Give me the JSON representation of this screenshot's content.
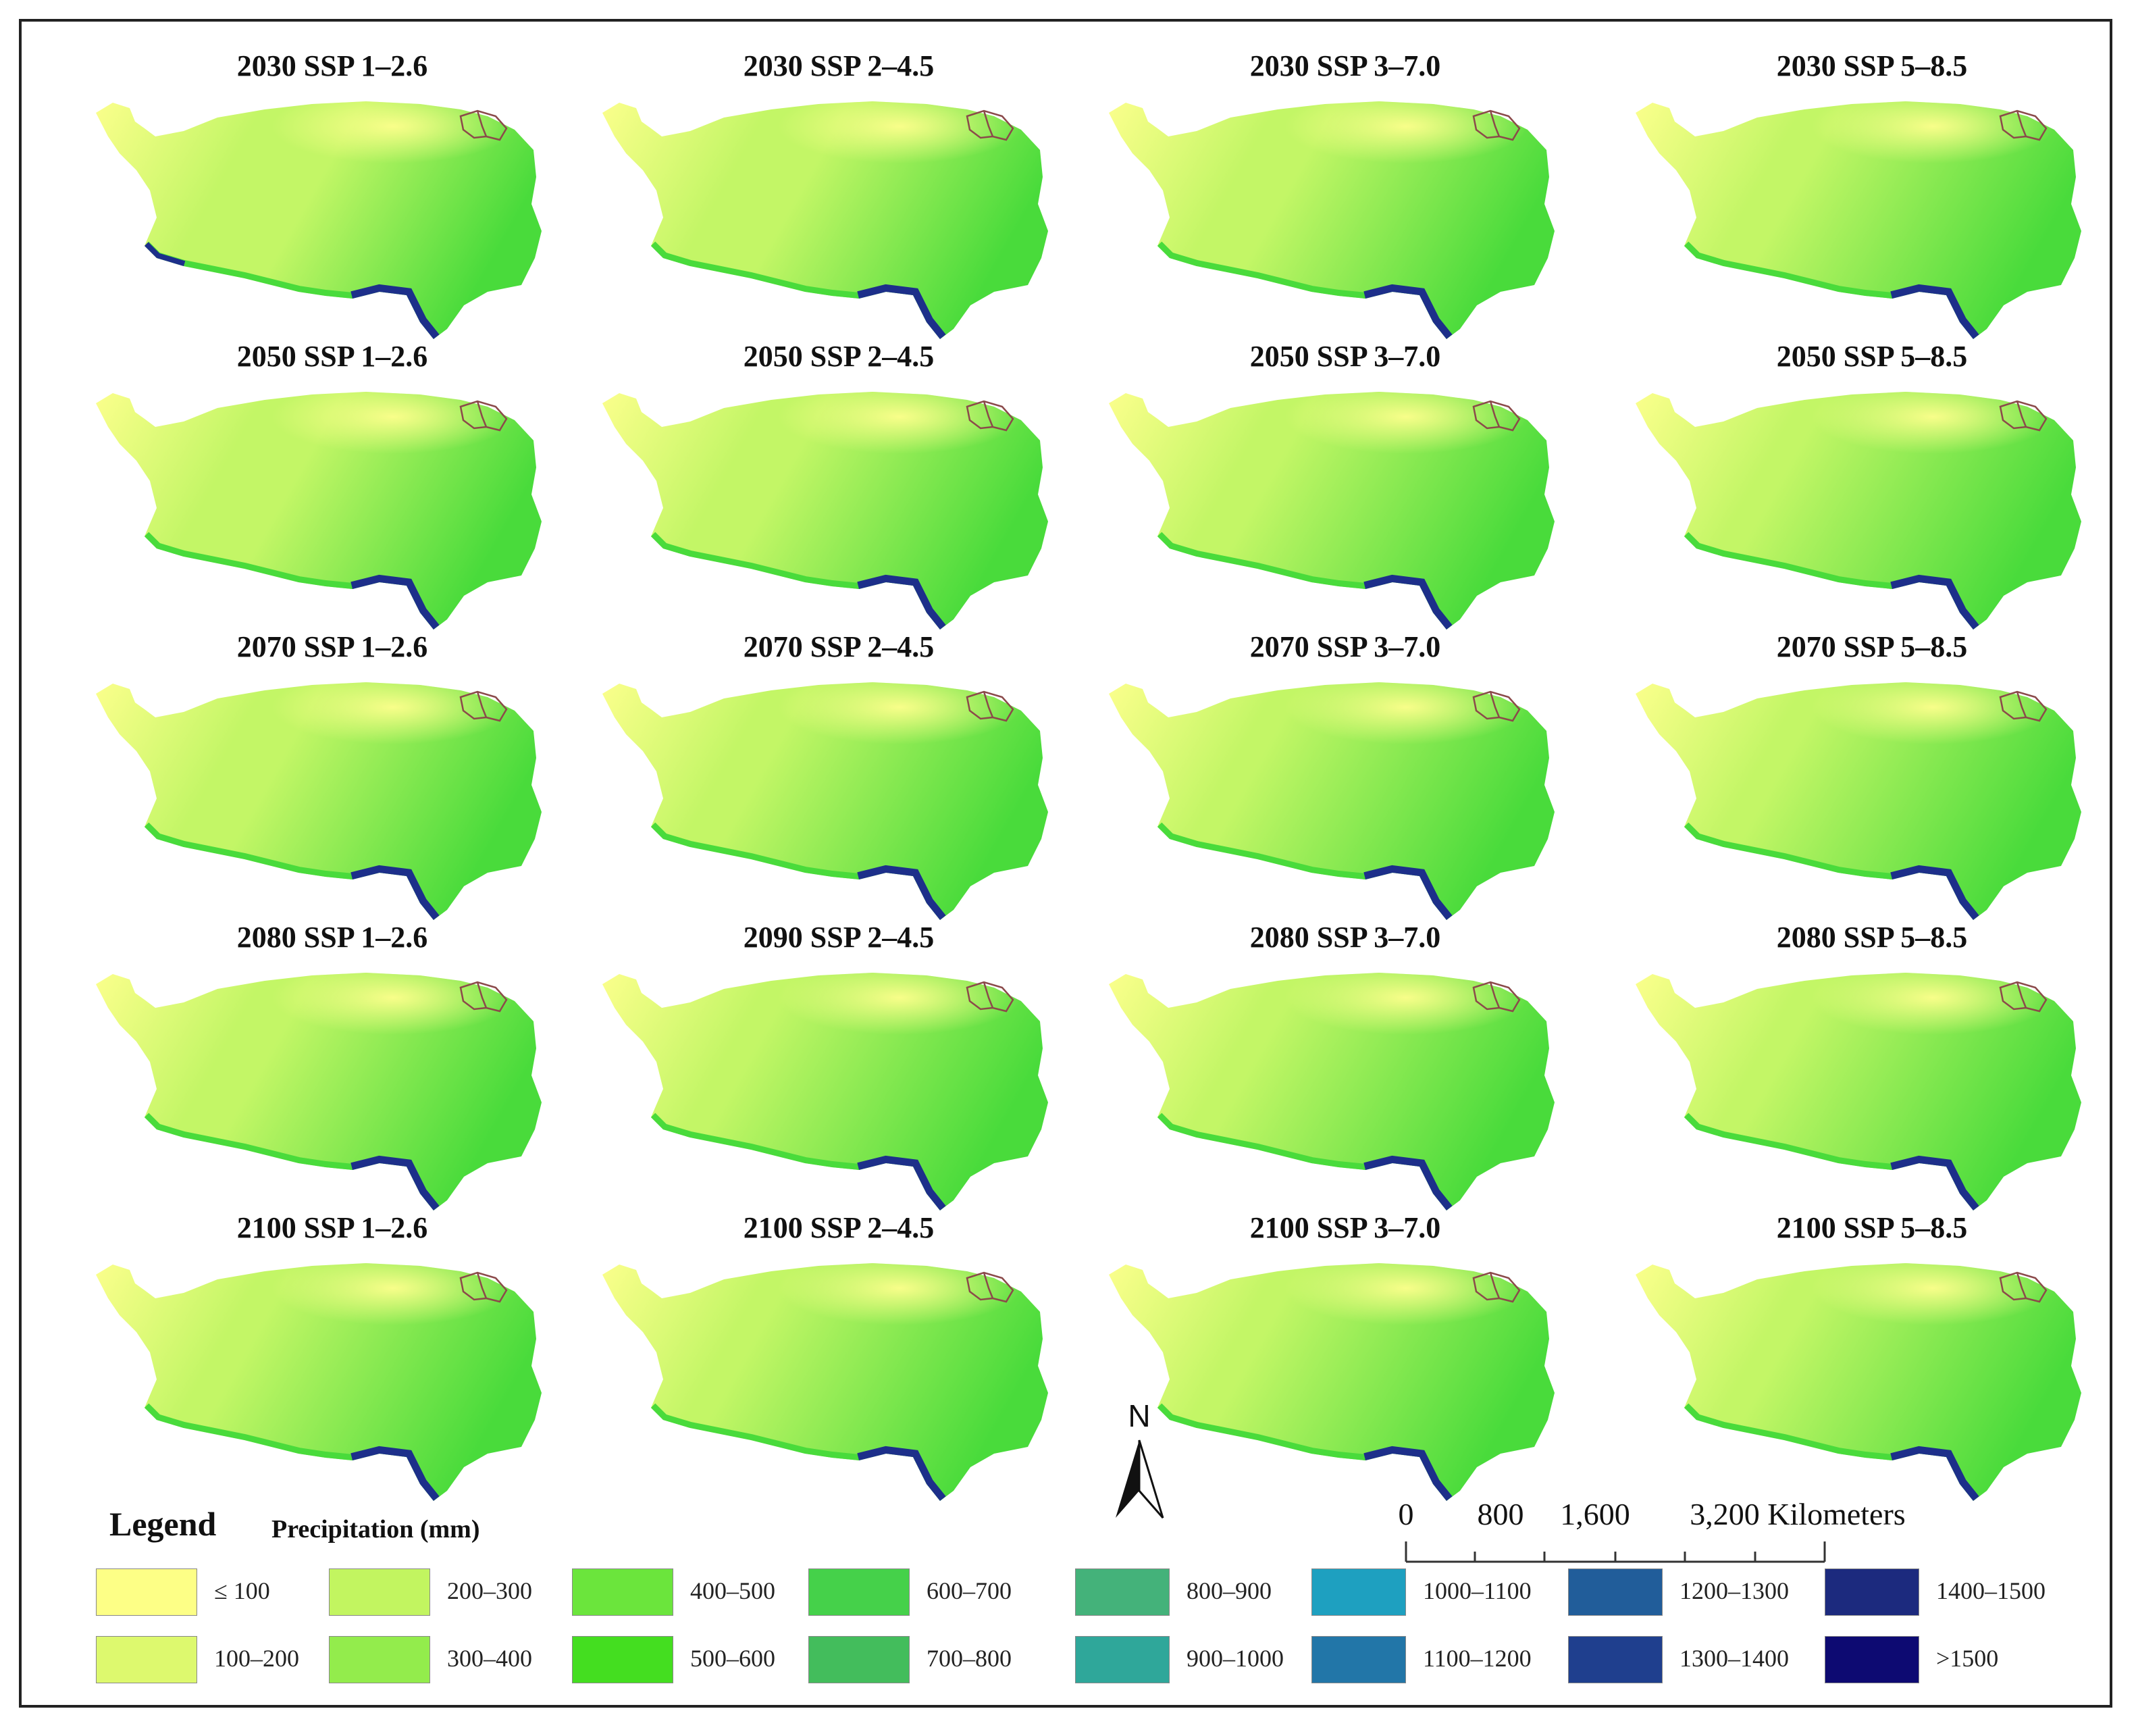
{
  "panels": [
    {
      "title": "2030 SSP 1–2.6",
      "scenario": 0,
      "year": 2030
    },
    {
      "title": "2030 SSP 2–4.5",
      "scenario": 1,
      "year": 2030
    },
    {
      "title": "2030 SSP 3–7.0",
      "scenario": 2,
      "year": 2030
    },
    {
      "title": "2030 SSP 5–8.5",
      "scenario": 3,
      "year": 2030
    },
    {
      "title": "2050 SSP 1–2.6",
      "scenario": 0,
      "year": 2050
    },
    {
      "title": "2050 SSP 2–4.5",
      "scenario": 1,
      "year": 2050
    },
    {
      "title": "2050 SSP 3–7.0",
      "scenario": 2,
      "year": 2050
    },
    {
      "title": "2050 SSP 5–8.5",
      "scenario": 3,
      "year": 2050
    },
    {
      "title": "2070 SSP 1–2.6",
      "scenario": 0,
      "year": 2070
    },
    {
      "title": "2070 SSP 2–4.5",
      "scenario": 1,
      "year": 2070
    },
    {
      "title": "2070 SSP 3–7.0",
      "scenario": 2,
      "year": 2070
    },
    {
      "title": "2070 SSP 5–8.5",
      "scenario": 3,
      "year": 2070
    },
    {
      "title": "2080 SSP 1–2.6",
      "scenario": 0,
      "year": 2080
    },
    {
      "title": "2090 SSP 2–4.5",
      "scenario": 1,
      "year": 2090
    },
    {
      "title": "2080 SSP 3–7.0",
      "scenario": 2,
      "year": 2080
    },
    {
      "title": "2080 SSP 5–8.5",
      "scenario": 3,
      "year": 2080
    },
    {
      "title": "2100 SSP 1–2.6",
      "scenario": 0,
      "year": 2100
    },
    {
      "title": "2100 SSP 2–4.5",
      "scenario": 1,
      "year": 2100
    },
    {
      "title": "2100 SSP 3–7.0",
      "scenario": 2,
      "year": 2100
    },
    {
      "title": "2100 SSP 5–8.5",
      "scenario": 3,
      "year": 2100
    }
  ],
  "legend": {
    "title": "Legend",
    "subtitle": "Precipitation (mm)",
    "classes": [
      {
        "label": "≤ 100",
        "color": "#fdff86"
      },
      {
        "label": "100–200",
        "color": "#ddf96e"
      },
      {
        "label": "200–300",
        "color": "#c2f560"
      },
      {
        "label": "300–400",
        "color": "#93ec4c"
      },
      {
        "label": "400–500",
        "color": "#6be53c"
      },
      {
        "label": "500–600",
        "color": "#44de20"
      },
      {
        "label": "600–700",
        "color": "#45d14a"
      },
      {
        "label": "700–800",
        "color": "#43bd5c"
      },
      {
        "label": "800–900",
        "color": "#44b27a"
      },
      {
        "label": "900–1000",
        "color": "#2fa79a"
      },
      {
        "label": "1000–1100",
        "color": "#1ea0c0"
      },
      {
        "label": "1100–1200",
        "color": "#2276a8"
      },
      {
        "label": "1200–1300",
        "color": "#215d9a"
      },
      {
        "label": "1300–1400",
        "color": "#1f3f8e"
      },
      {
        "label": "1400–1500",
        "color": "#1c2a7e"
      },
      {
        "label": ">1500",
        "color": "#0d0a72"
      }
    ]
  },
  "north_arrow": {
    "label": "N"
  },
  "scale_bar": {
    "labels": [
      "0",
      "800",
      "1,600",
      "3,200 Kilometers"
    ]
  },
  "colors": {
    "dry": "#fbff8c",
    "mid": "#c3f666",
    "wet": "#49db3b",
    "very_wet": "#1d2f8a",
    "basin_outline": "#8b4a4a"
  }
}
